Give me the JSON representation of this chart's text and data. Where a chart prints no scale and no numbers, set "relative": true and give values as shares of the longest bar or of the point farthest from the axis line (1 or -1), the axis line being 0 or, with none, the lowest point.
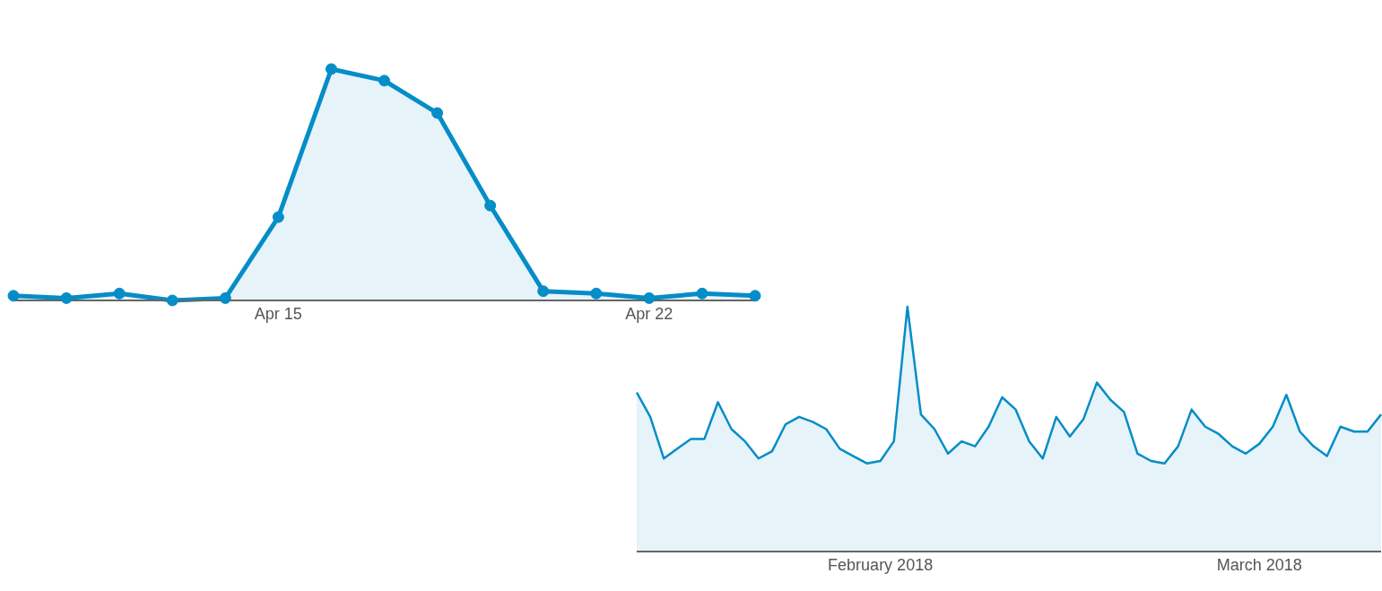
{
  "chart_data": [
    {
      "type": "area",
      "relative": true,
      "marker": "circle",
      "categories": [
        null,
        null,
        null,
        null,
        null,
        "Apr 15",
        null,
        null,
        null,
        null,
        null,
        null,
        "Apr 22",
        null,
        null
      ],
      "series": [
        {
          "color": "#058dc7",
          "values": [
            0.02,
            0.01,
            0.03,
            0,
            0.01,
            0.36,
            1,
            0.95,
            0.81,
            0.41,
            0.04,
            0.03,
            0.01,
            0.03,
            0.02
          ]
        }
      ]
    },
    {
      "type": "area",
      "relative": true,
      "marker": "none",
      "categories": [
        null,
        null,
        null,
        null,
        null,
        null,
        null,
        null,
        null,
        null,
        null,
        null,
        null,
        null,
        null,
        null,
        null,
        null,
        "February 2018",
        null,
        null,
        null,
        null,
        null,
        null,
        null,
        null,
        null,
        null,
        null,
        null,
        null,
        null,
        null,
        null,
        null,
        null,
        null,
        null,
        null,
        null,
        null,
        null,
        null,
        null,
        null,
        "March 2018",
        null,
        null,
        null,
        null,
        null,
        null,
        null,
        null,
        null
      ],
      "series": [
        {
          "color": "#058dc7",
          "values": [
            0.65,
            0.55,
            0.38,
            0.42,
            0.46,
            0.46,
            0.61,
            0.5,
            0.45,
            0.38,
            0.41,
            0.52,
            0.55,
            0.53,
            0.5,
            0.42,
            0.39,
            0.36,
            0.37,
            0.45,
            1,
            0.56,
            0.5,
            0.4,
            0.45,
            0.43,
            0.51,
            0.63,
            0.58,
            0.45,
            0.38,
            0.55,
            0.47,
            0.54,
            0.69,
            0.62,
            0.57,
            0.4,
            0.37,
            0.36,
            0.43,
            0.58,
            0.51,
            0.48,
            0.43,
            0.4,
            0.44,
            0.51,
            0.64,
            0.49,
            0.43,
            0.39,
            0.51,
            0.49,
            0.49,
            0.56
          ]
        }
      ]
    }
  ]
}
